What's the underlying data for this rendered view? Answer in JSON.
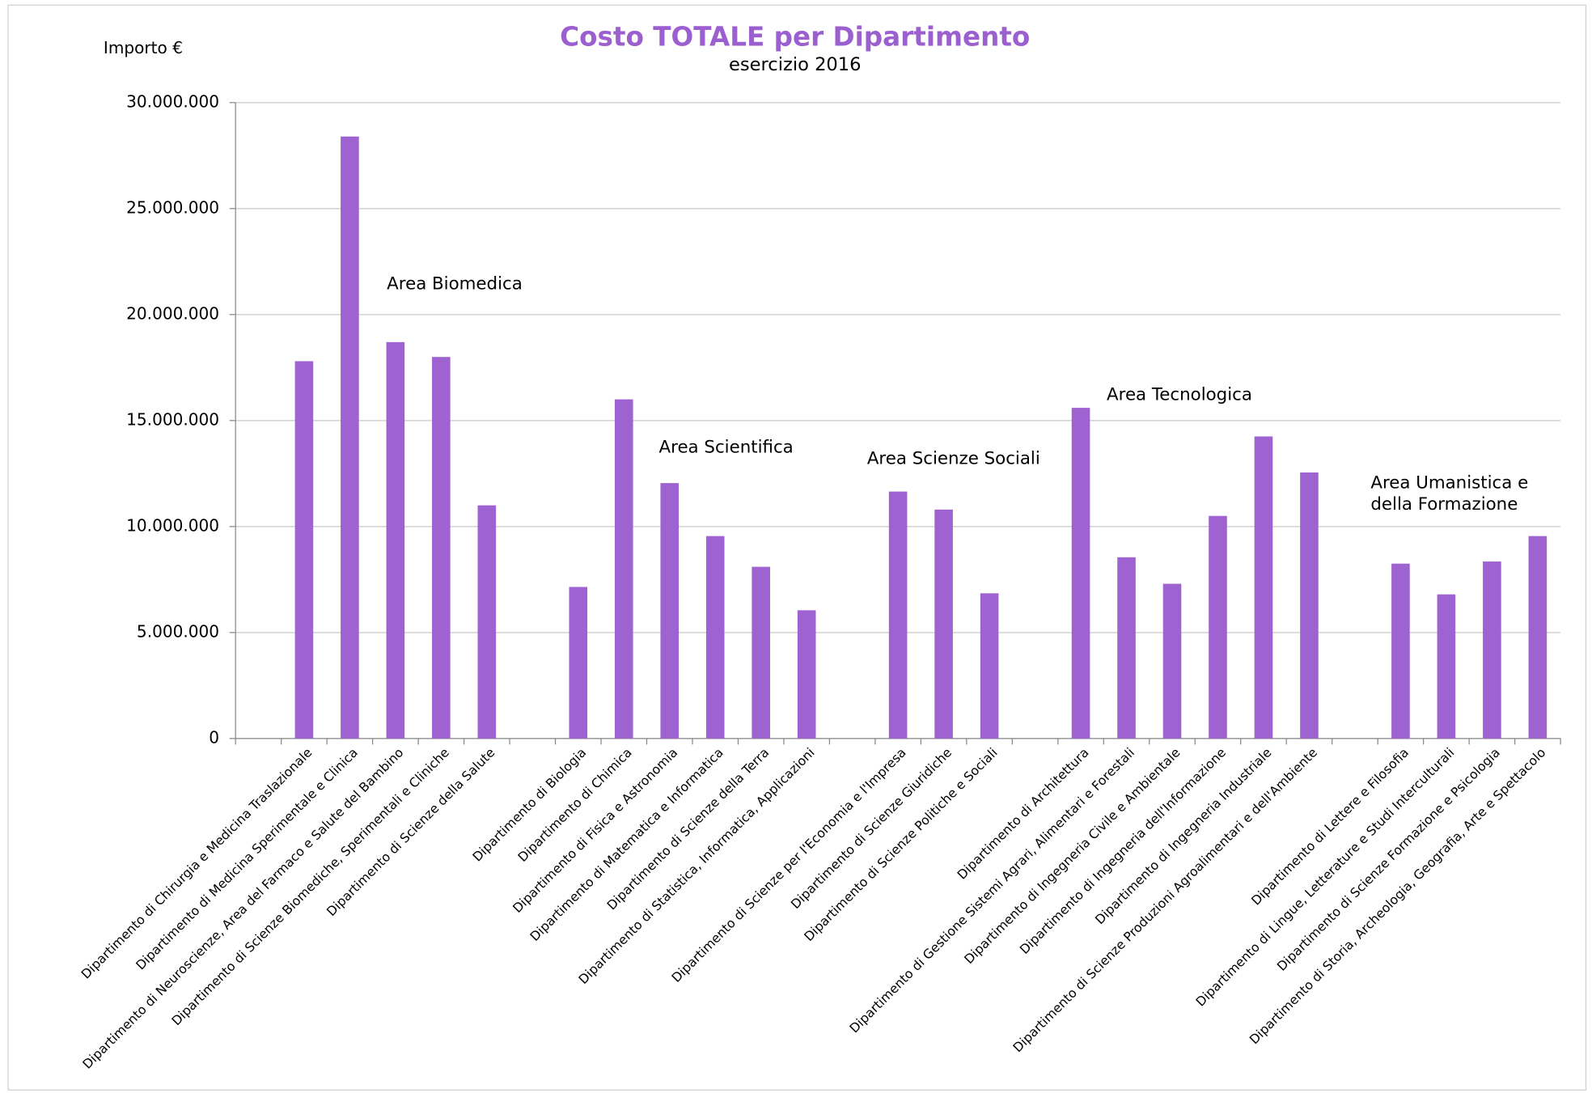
{
  "chart_data": {
    "type": "bar",
    "title": "Costo TOTALE per Dipartimento",
    "subtitle": "esercizio 2016",
    "y_axis_label": "Importo €",
    "color": "#9e63d1",
    "grid": true,
    "ylim": [
      0,
      30000000
    ],
    "yticks": [
      0,
      {
        "value": 5000000,
        "label": "5.000.000"
      },
      {
        "value": 10000000,
        "label": "10.000.000"
      },
      {
        "value": 15000000,
        "label": "15.000.000"
      },
      {
        "value": 20000000,
        "label": "20.000.000"
      },
      {
        "value": 25000000,
        "label": "25.000.000"
      },
      {
        "value": 30000000,
        "label": "30.000.000"
      }
    ],
    "categories": [
      null,
      "Dipartimento di Chirurgia e Medicina Traslazionale",
      "Dipartimento di Medicina Sperimentale e Clinica",
      "Dipartimento di Neuroscienze, Area del Farmaco e Salute del Bambino",
      "Dipartimento di Scienze Biomediche, Sperimentali e Cliniche",
      "Dipartimento di Scienze della Salute",
      null,
      "Dipartimento di Biologia",
      "Dipartimento di Chimica",
      "Dipartimento di Fisica e Astronomia",
      "Dipartimento di Matematica e Informatica",
      "Dipartimento di Scienze della Terra",
      "Dipartimento di Statistica, Informatica, Applicazioni",
      null,
      "Dipartimento di Scienze per l'Economia e l'Impresa",
      "Dipartimento di Scienze Giuridiche",
      "Dipartimento di Scienze Politiche e Sociali",
      null,
      "Dipartimento di Architettura",
      "Dipartimento di Gestione Sistemi Agrari, Alimentari e Forestali",
      "Dipartimento di Ingegneria Civile e Ambientale",
      "Dipartimento di Ingegneria dell'Informazione",
      "Dipartimento di Ingegneria Industriale",
      "Dipartimento di Scienze Produzioni Agroalimentari e dell'Ambiente",
      null,
      "Dipartimento di Lettere e Filosofia",
      "Dipartimento di Lingue, Letterature e Studi Interculturali",
      "Dipartimento di Scienze Formazione e Psicologia",
      "Dipartimento di Storia, Archeologia, Geografia, Arte e Spettacolo"
    ],
    "values": [
      null,
      17800000,
      28400000,
      18700000,
      18000000,
      11000000,
      null,
      7150000,
      16000000,
      12050000,
      9550000,
      8100000,
      6050000,
      null,
      11650000,
      10800000,
      6850000,
      null,
      15600000,
      8550000,
      7300000,
      10500000,
      14250000,
      12550000,
      null,
      8250000,
      6800000,
      8350000,
      9550000
    ],
    "annotations": [
      [
        "Area Biomedica"
      ],
      [
        "Area Scientifica"
      ],
      [
        "Area Scienze Sociali"
      ],
      [
        "Area Tecnologica"
      ],
      [
        "Area Umanistica e",
        "della Formazione"
      ]
    ]
  }
}
